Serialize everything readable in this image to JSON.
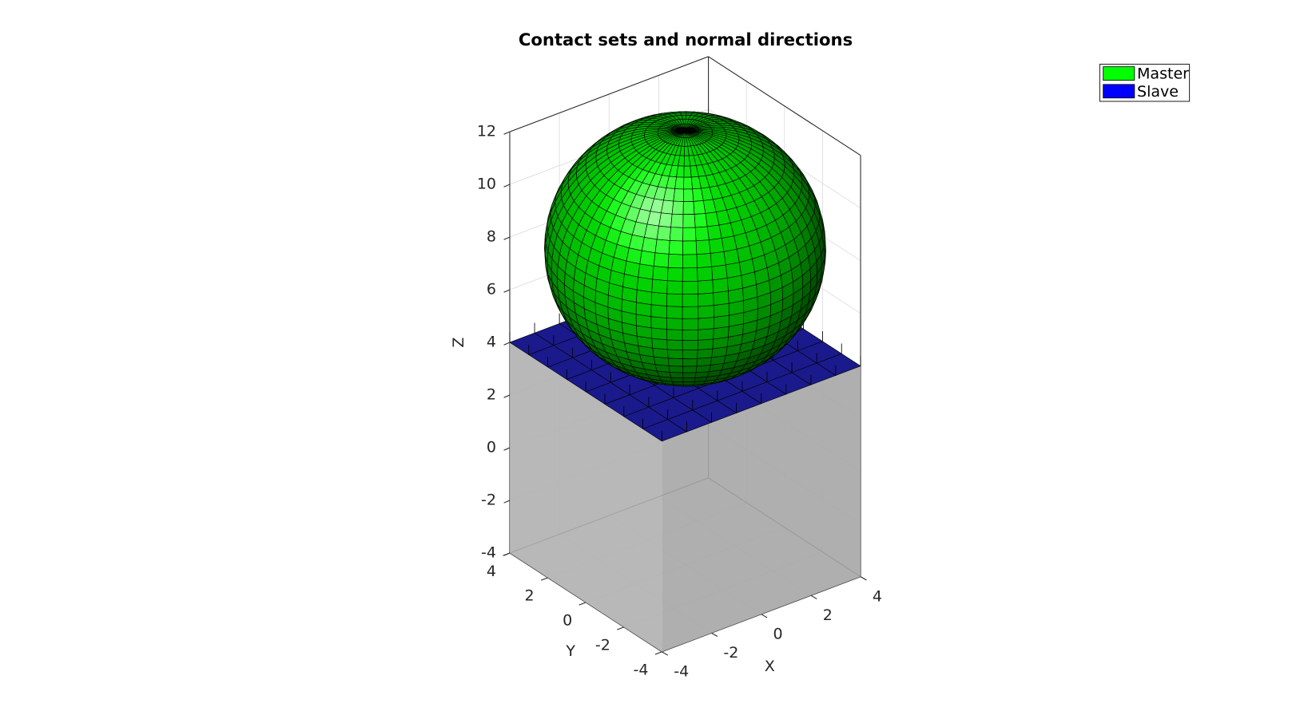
{
  "chart_data": {
    "type": "surface3d",
    "title": "Contact sets and normal directions",
    "xlabel": "X",
    "ylabel": "Y",
    "zlabel": "Z",
    "xlim": [
      -4,
      4
    ],
    "ylim": [
      -4,
      4
    ],
    "zlim": [
      -4,
      12
    ],
    "xticks": [
      -4,
      -2,
      0,
      2,
      4
    ],
    "yticks": [
      -4,
      -2,
      0,
      2,
      4
    ],
    "zticks": [
      -4,
      -2,
      0,
      2,
      4,
      6,
      8,
      10,
      12
    ],
    "grid": true,
    "legend_position": "northeastoutside",
    "series": [
      {
        "name": "Master",
        "color": "#00ff00",
        "shape": "sphere",
        "center": [
          0,
          0,
          8
        ],
        "radius": 4.5
      },
      {
        "name": "Slave",
        "color": "#0000ff",
        "shape": "plane",
        "x": [
          -4,
          4
        ],
        "y": [
          -4,
          4
        ],
        "z": 4
      }
    ]
  }
}
